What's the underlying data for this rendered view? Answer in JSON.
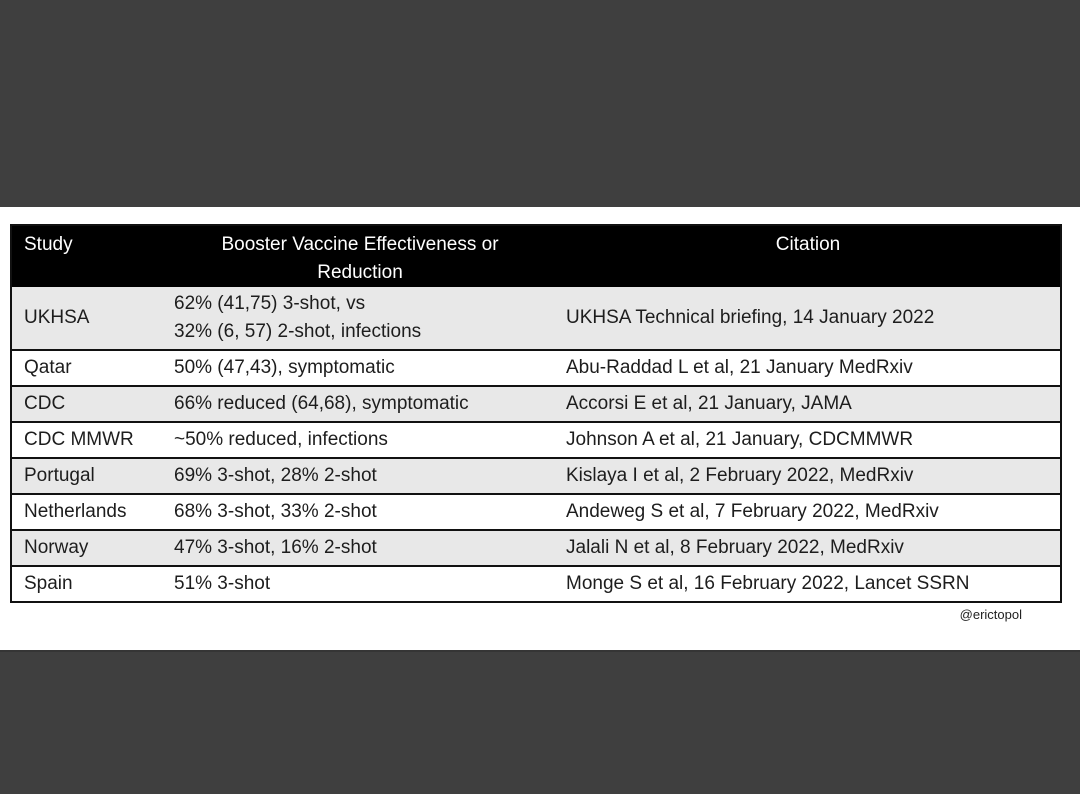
{
  "colors": {
    "band_gray": "#3f3f3f",
    "header_bg": "#000000",
    "header_text": "#ffffff",
    "row_alt_bg": "#e8e8e8",
    "row_bg": "#ffffff",
    "border": "#111111",
    "body_text": "#1d1d1d"
  },
  "chart_data": {
    "type": "table",
    "title": "",
    "columns": [
      "Study",
      "Booster Vaccine Effectiveness or\nReduction",
      "Citation"
    ],
    "rows": [
      [
        "UKHSA",
        "62% (41,75) 3-shot, vs\n32% (6, 57) 2-shot, infections",
        "UKHSA Technical briefing, 14 January 2022"
      ],
      [
        "Qatar",
        "50% (47,43), symptomatic",
        "Abu-Raddad L et al, 21 January MedRxiv"
      ],
      [
        "CDC",
        "66% reduced (64,68), symptomatic",
        "Accorsi E et al, 21 January, JAMA"
      ],
      [
        "CDC MMWR",
        "~50% reduced, infections",
        "Johnson A et al, 21 January, CDCMMWR"
      ],
      [
        "Portugal",
        "69% 3-shot, 28% 2-shot",
        "Kislaya I et al, 2 February 2022, MedRxiv"
      ],
      [
        "Netherlands",
        "68% 3-shot, 33% 2-shot",
        "Andeweg S et al, 7 February 2022, MedRxiv"
      ],
      [
        "Norway",
        "47% 3-shot, 16% 2-shot",
        "Jalali N et al, 8 February 2022, MedRxiv"
      ],
      [
        "Spain",
        "51% 3-shot",
        "Monge S et al, 16 February 2022, Lancet SSRN"
      ]
    ]
  },
  "footer": {
    "credit": "@erictopol"
  }
}
